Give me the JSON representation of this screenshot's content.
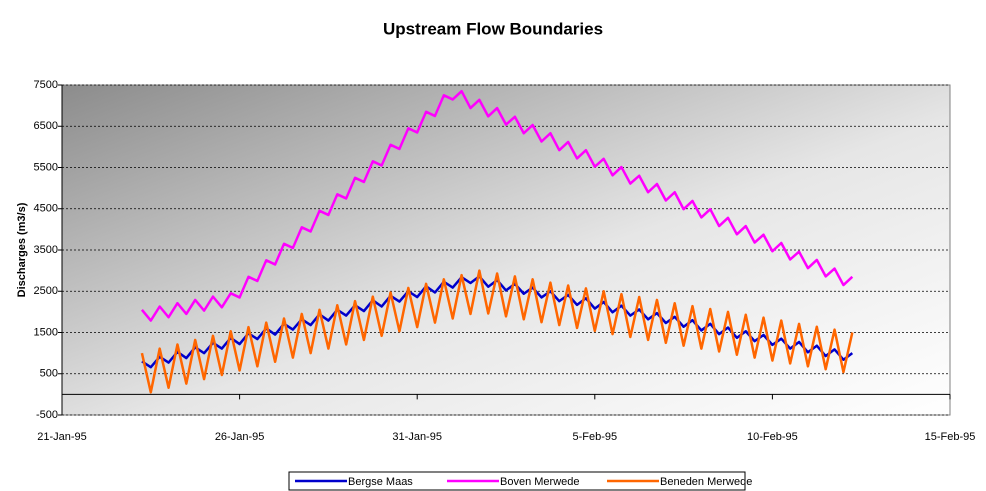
{
  "chart_data": {
    "type": "line",
    "title": "Upstream Flow Boundaries",
    "y_label": "Discharges (m3/s)",
    "x": [
      34722.25,
      34722.5,
      34722.75,
      34723,
      34723.25,
      34723.5,
      34723.75,
      34724,
      34724.25,
      34724.5,
      34724.75,
      34725,
      34725.25,
      34725.5,
      34725.75,
      34726,
      34726.25,
      34726.5,
      34726.75,
      34727,
      34727.25,
      34727.5,
      34727.75,
      34728,
      34728.25,
      34728.5,
      34728.75,
      34729,
      34729.25,
      34729.5,
      34729.75,
      34730,
      34730.25,
      34730.5,
      34730.75,
      34731,
      34731.25,
      34731.5,
      34731.75,
      34732,
      34732.25,
      34732.5,
      34732.75,
      34733,
      34733.25,
      34733.5,
      34733.75,
      34734,
      34734.25,
      34734.5,
      34734.75,
      34735,
      34735.25,
      34735.5,
      34735.75,
      34736,
      34736.25,
      34736.5,
      34736.75,
      34737,
      34737.25,
      34737.5,
      34737.75,
      34738,
      34738.25,
      34738.5,
      34738.75,
      34739,
      34739.25,
      34739.5,
      34739.75,
      34740,
      34740.25,
      34740.5,
      34740.75,
      34741,
      34741.25,
      34741.5,
      34741.75,
      34742,
      34742.25
    ],
    "series": [
      {
        "name": "Bergse Maas",
        "color": "#0000cc",
        "values": [
          800,
          660,
          910,
          770,
          1030,
          880,
          1140,
          1000,
          1250,
          1110,
          1370,
          1220,
          1480,
          1340,
          1600,
          1450,
          1710,
          1570,
          1820,
          1680,
          1940,
          1790,
          2050,
          1910,
          2160,
          2020,
          2280,
          2130,
          2390,
          2250,
          2500,
          2360,
          2620,
          2470,
          2730,
          2590,
          2840,
          2700,
          2860,
          2610,
          2770,
          2520,
          2680,
          2440,
          2590,
          2350,
          2500,
          2260,
          2410,
          2170,
          2330,
          2080,
          2240,
          1990,
          2150,
          1910,
          2060,
          1820,
          1970,
          1730,
          1880,
          1640,
          1800,
          1550,
          1710,
          1460,
          1620,
          1370,
          1530,
          1290,
          1440,
          1200,
          1350,
          1110,
          1270,
          1020,
          1180,
          930,
          1090,
          840,
          1000
        ]
      },
      {
        "name": "Boven Merwede",
        "color": "#ff00ff",
        "values": [
          2050,
          1790,
          2130,
          1870,
          2210,
          1950,
          2290,
          2030,
          2370,
          2110,
          2450,
          2350,
          2850,
          2750,
          3250,
          3150,
          3650,
          3550,
          4050,
          3950,
          4450,
          4350,
          4850,
          4750,
          5250,
          5150,
          5650,
          5550,
          6050,
          5950,
          6450,
          6350,
          6850,
          6750,
          7250,
          7150,
          7350,
          6940,
          7140,
          6740,
          6940,
          6540,
          6730,
          6330,
          6530,
          6130,
          6330,
          5920,
          6120,
          5720,
          5920,
          5520,
          5710,
          5310,
          5510,
          5110,
          5300,
          4900,
          5100,
          4700,
          4900,
          4490,
          4690,
          4290,
          4490,
          4080,
          4280,
          3880,
          4080,
          3680,
          3870,
          3470,
          3670,
          3270,
          3460,
          3060,
          3260,
          2860,
          3050,
          2650,
          2850
        ]
      },
      {
        "name": "Beneden Merwede",
        "color": "#ff6600",
        "values": [
          1000,
          50,
          1110,
          160,
          1210,
          260,
          1320,
          370,
          1420,
          470,
          1530,
          580,
          1630,
          680,
          1740,
          790,
          1840,
          890,
          1950,
          1000,
          2050,
          1110,
          2160,
          1210,
          2260,
          1320,
          2370,
          1420,
          2470,
          1530,
          2580,
          1630,
          2680,
          1740,
          2790,
          1840,
          2890,
          1950,
          3000,
          1960,
          2930,
          1890,
          2860,
          1820,
          2790,
          1750,
          2710,
          1680,
          2640,
          1610,
          2570,
          1540,
          2500,
          1460,
          2430,
          1390,
          2360,
          1320,
          2290,
          1250,
          2210,
          1180,
          2140,
          1110,
          2070,
          1040,
          2000,
          960,
          1930,
          890,
          1860,
          820,
          1790,
          750,
          1710,
          680,
          1640,
          610,
          1570,
          540,
          1500
        ]
      }
    ],
    "xlim": [
      34720,
      34745
    ],
    "xticks": [
      {
        "value": 34720,
        "label": "21-Jan-95"
      },
      {
        "value": 34725,
        "label": "26-Jan-95"
      },
      {
        "value": 34730,
        "label": "31-Jan-95"
      },
      {
        "value": 34735,
        "label": "5-Feb-95"
      },
      {
        "value": 34740,
        "label": "10-Feb-95"
      },
      {
        "value": 34745,
        "label": "15-Feb-95"
      }
    ],
    "ylim": [
      -500,
      7500
    ],
    "yticks": [
      -500,
      500,
      1500,
      2500,
      3500,
      4500,
      5500,
      6500,
      7500
    ],
    "grid": true,
    "legend": "bottom"
  }
}
